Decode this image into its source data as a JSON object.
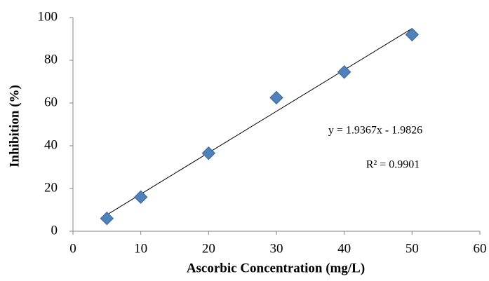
{
  "chart_data": {
    "type": "scatter",
    "x_label": "Ascorbic Concentration (mg/L)",
    "y_label": "Inhibition  (%)",
    "x": [
      5,
      10,
      20,
      30,
      40,
      50
    ],
    "values": [
      6,
      16,
      36.5,
      62.5,
      74.5,
      92
    ],
    "color": "#4f81bd",
    "xlim": [
      0,
      60
    ],
    "xticks": [
      0,
      10,
      20,
      30,
      40,
      50,
      60
    ],
    "ylim": [
      0,
      100
    ],
    "yticks": [
      0,
      20,
      40,
      60,
      80,
      100
    ],
    "trendline": {
      "slope": 1.9367,
      "intercept": -1.9826,
      "color": "#000000",
      "equation": "y = 1.9367x - 1.9826",
      "r_squared": "R² = 0.9901"
    }
  }
}
